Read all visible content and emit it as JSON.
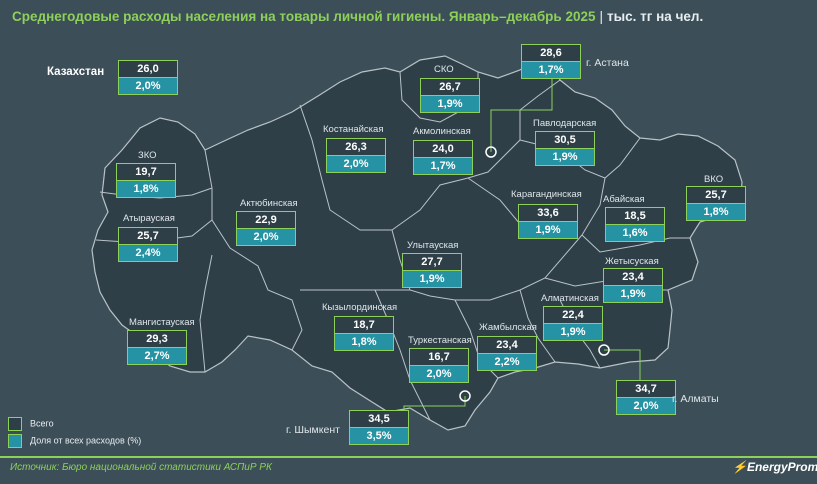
{
  "title": {
    "main": "Среднегодовые расходы населения на товары личной гигиены. Январь–декабрь 2025",
    "separator": "|",
    "unit": "тыс. тг на чел."
  },
  "colors": {
    "accent": "#8dd05a",
    "map_fill": "#2e3f48",
    "share_fill": "#2593a3",
    "background": "#3c4e58"
  },
  "country": {
    "name": "Казахстан",
    "total": "26,0",
    "share": "2,0%"
  },
  "regions": [
    {
      "key": "zko",
      "name": "ЗКО",
      "total": "19,7",
      "share": "1,8%"
    },
    {
      "key": "atyrau",
      "name": "Атырауская",
      "total": "25,7",
      "share": "2,4%"
    },
    {
      "key": "mangystau",
      "name": "Мангистауская",
      "total": "29,3",
      "share": "2,7%"
    },
    {
      "key": "aktobe",
      "name": "Актюбинская",
      "total": "22,9",
      "share": "2,0%"
    },
    {
      "key": "kostanay",
      "name": "Костанайская",
      "total": "26,3",
      "share": "2,0%"
    },
    {
      "key": "sko",
      "name": "СКО",
      "total": "26,7",
      "share": "1,9%"
    },
    {
      "key": "akmola",
      "name": "Акмолинская",
      "total": "24,0",
      "share": "1,7%"
    },
    {
      "key": "astana",
      "name": "г. Астана",
      "total": "28,6",
      "share": "1,7%"
    },
    {
      "key": "pavlodar",
      "name": "Павлодарская",
      "total": "30,5",
      "share": "1,9%"
    },
    {
      "key": "karaganda",
      "name": "Карагандинская",
      "total": "33,6",
      "share": "1,9%"
    },
    {
      "key": "vko",
      "name": "ВКО",
      "total": "25,7",
      "share": "1,8%"
    },
    {
      "key": "abay",
      "name": "Абайская",
      "total": "18,5",
      "share": "1,6%"
    },
    {
      "key": "ulytau",
      "name": "Улытауская",
      "total": "27,7",
      "share": "1,9%"
    },
    {
      "key": "kyzylorda",
      "name": "Кызылординская",
      "total": "18,7",
      "share": "1,8%"
    },
    {
      "key": "turkestan",
      "name": "Туркестанская",
      "total": "16,7",
      "share": "2,0%"
    },
    {
      "key": "zhambyl",
      "name": "Жамбылская",
      "total": "23,4",
      "share": "2,2%"
    },
    {
      "key": "almaty_obl",
      "name": "Алматинская",
      "total": "22,4",
      "share": "1,9%"
    },
    {
      "key": "zhetysu",
      "name": "Жетысуская",
      "total": "23,4",
      "share": "1,9%"
    },
    {
      "key": "almaty",
      "name": "г. Алматы",
      "total": "34,7",
      "share": "2,0%"
    },
    {
      "key": "shymkent",
      "name": "г. Шымкент",
      "total": "34,5",
      "share": "3,5%"
    }
  ],
  "legend": {
    "total_label": "Всего",
    "share_label": "Доля от всех расходов (%)"
  },
  "footer": {
    "source": "Источник: Бюро национальной статистики АСПиР РК",
    "brand": "EnergyProm"
  }
}
